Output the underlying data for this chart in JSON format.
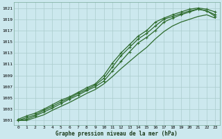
{
  "title": "Graphe pression niveau de la mer (hPa)",
  "bg_color": "#cce8ee",
  "grid_color": "#aacccc",
  "line_color": "#2d6b2d",
  "x_ticks": [
    0,
    1,
    2,
    3,
    4,
    5,
    6,
    7,
    8,
    9,
    10,
    11,
    12,
    13,
    14,
    15,
    16,
    17,
    18,
    19,
    20,
    21,
    22,
    23
  ],
  "y_ticks": [
    1001,
    1003,
    1005,
    1007,
    1009,
    1011,
    1013,
    1015,
    1017,
    1019,
    1021
  ],
  "ylim": [
    1000.2,
    1022.0
  ],
  "xlim": [
    -0.5,
    23.5
  ],
  "line1_x": [
    0,
    1,
    2,
    3,
    4,
    5,
    6,
    7,
    8,
    9,
    10,
    11,
    12,
    13,
    14,
    15,
    16,
    17,
    18,
    19,
    20,
    21,
    22,
    23
  ],
  "line1_y": [
    1001.2,
    1001.8,
    1002.3,
    1003.0,
    1003.8,
    1004.6,
    1005.2,
    1006.0,
    1006.8,
    1007.5,
    1009.0,
    1011.2,
    1013.0,
    1014.5,
    1016.0,
    1017.0,
    1018.5,
    1019.2,
    1019.8,
    1020.3,
    1020.8,
    1021.0,
    1020.8,
    1020.3
  ],
  "line2_x": [
    0,
    1,
    2,
    3,
    4,
    5,
    6,
    7,
    8,
    9,
    10,
    11,
    12,
    13,
    14,
    15,
    16,
    17,
    18,
    19,
    20,
    21,
    22,
    23
  ],
  "line2_y": [
    1001.0,
    1001.5,
    1002.0,
    1002.8,
    1003.5,
    1004.3,
    1005.0,
    1005.8,
    1006.5,
    1007.3,
    1008.5,
    1010.5,
    1012.5,
    1014.0,
    1015.5,
    1016.5,
    1017.8,
    1019.0,
    1019.5,
    1020.0,
    1020.5,
    1020.8,
    1020.5,
    1019.8
  ],
  "line3_x": [
    0,
    1,
    2,
    3,
    4,
    5,
    6,
    7,
    8,
    9,
    10,
    11,
    12,
    13,
    14,
    15,
    16,
    17,
    18,
    19,
    20,
    21,
    22,
    23
  ],
  "line3_y": [
    1001.0,
    1001.2,
    1001.8,
    1002.5,
    1003.2,
    1004.0,
    1004.8,
    1005.5,
    1006.3,
    1007.0,
    1008.0,
    1009.8,
    1011.5,
    1013.2,
    1014.8,
    1015.8,
    1017.0,
    1018.5,
    1019.2,
    1019.8,
    1020.3,
    1020.8,
    1020.5,
    1019.5
  ],
  "line4_x": [
    0,
    1,
    2,
    3,
    4,
    5,
    6,
    7,
    8,
    9,
    10,
    11,
    12,
    13,
    14,
    15,
    16,
    17,
    18,
    19,
    20,
    21,
    22,
    23
  ],
  "line4_y": [
    1001.0,
    1001.0,
    1001.5,
    1002.0,
    1002.8,
    1003.5,
    1004.2,
    1005.0,
    1005.8,
    1006.5,
    1007.5,
    1008.8,
    1010.2,
    1011.5,
    1012.8,
    1014.0,
    1015.5,
    1016.8,
    1017.8,
    1018.5,
    1019.0,
    1019.5,
    1019.8,
    1019.2
  ]
}
